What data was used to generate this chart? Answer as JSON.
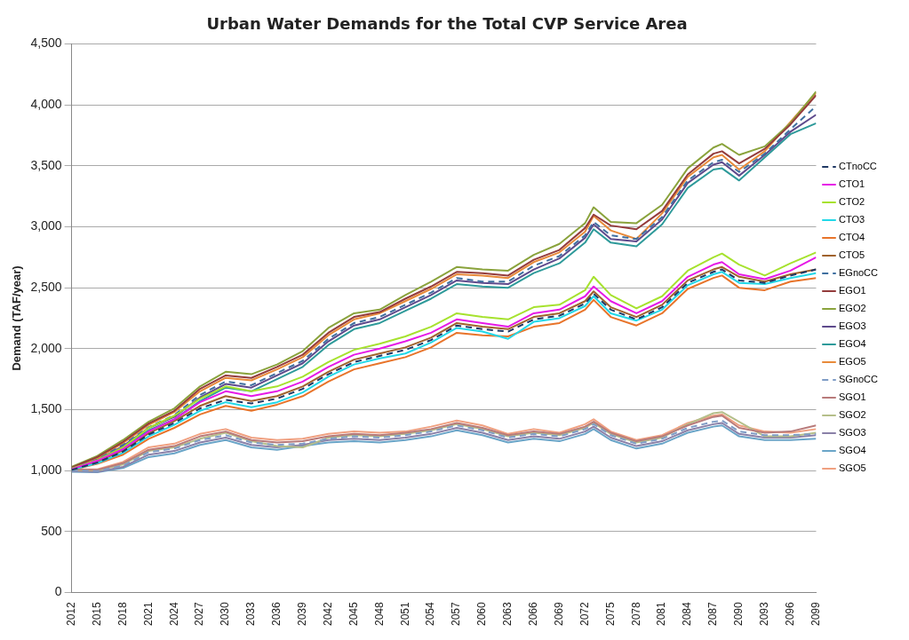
{
  "chart_data": {
    "type": "line",
    "title": "Urban Water Demands for the Total CVP Service Area",
    "ylabel": "Demand (TAF/year)",
    "x": [
      2012,
      2015,
      2018,
      2021,
      2024,
      2027,
      2030,
      2033,
      2036,
      2039,
      2042,
      2045,
      2048,
      2051,
      2054,
      2057,
      2060,
      2063,
      2066,
      2069,
      2072,
      2073,
      2075,
      2078,
      2081,
      2084,
      2087,
      2088,
      2090,
      2093,
      2096,
      2099
    ],
    "xlim": [
      2012,
      2099
    ],
    "xticks": [
      2012,
      2015,
      2018,
      2021,
      2024,
      2027,
      2030,
      2033,
      2036,
      2039,
      2042,
      2045,
      2048,
      2051,
      2054,
      2057,
      2060,
      2063,
      2066,
      2069,
      2072,
      2075,
      2078,
      2081,
      2084,
      2087,
      2090,
      2093,
      2096,
      2099
    ],
    "ylim": [
      0,
      4500
    ],
    "yticks": [
      0,
      500,
      {
        "value": 1000,
        "label": "1,000"
      },
      {
        "value": 1500,
        "label": "1,500"
      },
      {
        "value": 2000,
        "label": "2,000"
      },
      {
        "value": 2500,
        "label": "2,500"
      },
      {
        "value": 3000,
        "label": "3,000"
      },
      {
        "value": 3500,
        "label": "3,500"
      },
      {
        "value": 4000,
        "label": "4,000"
      },
      {
        "value": 4500,
        "label": "4,500"
      }
    ],
    "grid": "y",
    "legend": "right",
    "marker": "none",
    "series": [
      {
        "name": "CTnoCC",
        "color": "#1f3864",
        "line_style": "dashed",
        "values": [
          1005,
          1065,
          1155,
          1295,
          1390,
          1510,
          1580,
          1550,
          1590,
          1670,
          1790,
          1890,
          1940,
          1990,
          2070,
          2190,
          2160,
          2140,
          2240,
          2270,
          2370,
          2450,
          2320,
          2240,
          2340,
          2540,
          2630,
          2650,
          2560,
          2540,
          2600,
          2650
        ]
      },
      {
        "name": "CTO1",
        "color": "#e619e6",
        "values": [
          1010,
          1080,
          1175,
          1320,
          1420,
          1560,
          1650,
          1610,
          1650,
          1730,
          1850,
          1950,
          2000,
          2060,
          2130,
          2240,
          2210,
          2180,
          2290,
          2320,
          2430,
          2510,
          2390,
          2290,
          2390,
          2590,
          2690,
          2710,
          2610,
          2570,
          2640,
          2750
        ]
      },
      {
        "name": "CTO2",
        "color": "#a6e22e",
        "values": [
          1015,
          1085,
          1190,
          1350,
          1450,
          1590,
          1690,
          1650,
          1690,
          1770,
          1890,
          1990,
          2040,
          2100,
          2180,
          2290,
          2260,
          2240,
          2340,
          2360,
          2480,
          2590,
          2440,
          2330,
          2430,
          2640,
          2750,
          2780,
          2690,
          2600,
          2700,
          2790
        ]
      },
      {
        "name": "CTO3",
        "color": "#22d8e8",
        "values": [
          1005,
          1060,
          1145,
          1280,
          1375,
          1490,
          1560,
          1520,
          1560,
          1640,
          1770,
          1870,
          1920,
          1960,
          2050,
          2170,
          2140,
          2080,
          2220,
          2250,
          2350,
          2430,
          2290,
          2230,
          2320,
          2520,
          2610,
          2630,
          2540,
          2530,
          2580,
          2620
        ]
      },
      {
        "name": "CTO4",
        "color": "#e8742a",
        "values": [
          1005,
          1055,
          1130,
          1260,
          1350,
          1460,
          1530,
          1490,
          1540,
          1610,
          1730,
          1830,
          1880,
          1930,
          2010,
          2130,
          2110,
          2100,
          2180,
          2210,
          2320,
          2400,
          2260,
          2190,
          2290,
          2490,
          2580,
          2600,
          2500,
          2480,
          2550,
          2580
        ]
      },
      {
        "name": "CTO5",
        "color": "#a0622d",
        "values": [
          1010,
          1070,
          1165,
          1305,
          1405,
          1530,
          1610,
          1570,
          1610,
          1690,
          1810,
          1910,
          1960,
          2010,
          2090,
          2210,
          2180,
          2160,
          2260,
          2290,
          2390,
          2470,
          2340,
          2260,
          2360,
          2560,
          2650,
          2670,
          2590,
          2550,
          2610,
          2650
        ]
      },
      {
        "name": "EGnoCC",
        "color": "#3f6fa0",
        "line_style": "dashed",
        "values": [
          1015,
          1090,
          1210,
          1355,
          1455,
          1620,
          1730,
          1700,
          1800,
          1900,
          2080,
          2210,
          2260,
          2360,
          2460,
          2580,
          2550,
          2550,
          2680,
          2760,
          2930,
          3040,
          2930,
          2900,
          3080,
          3380,
          3530,
          3550,
          3450,
          3600,
          3800,
          3990
        ]
      },
      {
        "name": "EGO1",
        "color": "#943c3c",
        "values": [
          1025,
          1110,
          1235,
          1385,
          1490,
          1670,
          1780,
          1760,
          1850,
          1950,
          2130,
          2260,
          2300,
          2410,
          2510,
          2630,
          2620,
          2600,
          2730,
          2810,
          2990,
          3100,
          3010,
          2980,
          3130,
          3430,
          3600,
          3620,
          3520,
          3640,
          3840,
          4080
        ]
      },
      {
        "name": "EGO2",
        "color": "#8aa33c",
        "values": [
          1030,
          1120,
          1250,
          1400,
          1510,
          1690,
          1810,
          1790,
          1870,
          1980,
          2170,
          2290,
          2320,
          2440,
          2550,
          2670,
          2650,
          2640,
          2770,
          2860,
          3030,
          3160,
          3040,
          3030,
          3180,
          3480,
          3650,
          3680,
          3590,
          3660,
          3850,
          4110
        ]
      },
      {
        "name": "EGO3",
        "color": "#5e4a8c",
        "values": [
          1015,
          1085,
          1200,
          1350,
          1440,
          1600,
          1710,
          1680,
          1780,
          1880,
          2060,
          2190,
          2240,
          2340,
          2440,
          2560,
          2540,
          2530,
          2650,
          2740,
          2910,
          3020,
          2900,
          2880,
          3060,
          3360,
          3510,
          3530,
          3420,
          3590,
          3780,
          3920
        ]
      },
      {
        "name": "EGO4",
        "color": "#2e9a9a",
        "values": [
          1010,
          1080,
          1190,
          1330,
          1420,
          1570,
          1680,
          1650,
          1750,
          1850,
          2030,
          2160,
          2210,
          2310,
          2410,
          2530,
          2510,
          2500,
          2620,
          2700,
          2870,
          2980,
          2870,
          2840,
          3020,
          3320,
          3470,
          3480,
          3380,
          3570,
          3760,
          3850
        ]
      },
      {
        "name": "EGO5",
        "color": "#e88a3a",
        "values": [
          1020,
          1100,
          1225,
          1375,
          1480,
          1650,
          1760,
          1740,
          1830,
          1930,
          2110,
          2240,
          2290,
          2390,
          2490,
          2610,
          2600,
          2580,
          2710,
          2790,
          2960,
          3090,
          2970,
          2900,
          3110,
          3410,
          3570,
          3590,
          3470,
          3620,
          3860,
          4100
        ]
      },
      {
        "name": "SGnoCC",
        "color": "#7f9cc6",
        "line_style": "dashed",
        "values": [
          1000,
          995,
          1040,
          1150,
          1180,
          1250,
          1290,
          1230,
          1210,
          1220,
          1260,
          1280,
          1270,
          1290,
          1320,
          1370,
          1330,
          1270,
          1300,
          1280,
          1340,
          1380,
          1290,
          1220,
          1260,
          1350,
          1400,
          1410,
          1320,
          1290,
          1290,
          1300
        ]
      },
      {
        "name": "SGO1",
        "color": "#b87a7a",
        "values": [
          1005,
          1005,
          1060,
          1170,
          1200,
          1280,
          1320,
          1250,
          1230,
          1240,
          1280,
          1300,
          1290,
          1310,
          1340,
          1390,
          1350,
          1290,
          1320,
          1300,
          1360,
          1400,
          1310,
          1240,
          1280,
          1370,
          1440,
          1450,
          1350,
          1310,
          1320,
          1370
        ]
      },
      {
        "name": "SGO2",
        "color": "#b5bf8a",
        "values": [
          1000,
          1000,
          1050,
          1160,
          1190,
          1260,
          1310,
          1240,
          1200,
          1190,
          1270,
          1290,
          1280,
          1300,
          1330,
          1380,
          1340,
          1280,
          1310,
          1290,
          1350,
          1390,
          1300,
          1230,
          1270,
          1380,
          1470,
          1480,
          1400,
          1280,
          1280,
          1310
        ]
      },
      {
        "name": "SGO3",
        "color": "#8a80a8",
        "values": [
          995,
          990,
          1030,
          1130,
          1160,
          1230,
          1270,
          1210,
          1190,
          1210,
          1250,
          1260,
          1250,
          1270,
          1300,
          1350,
          1310,
          1250,
          1280,
          1260,
          1320,
          1360,
          1270,
          1200,
          1240,
          1330,
          1380,
          1390,
          1300,
          1270,
          1270,
          1290
        ]
      },
      {
        "name": "SGO4",
        "color": "#6aa5c8",
        "values": [
          990,
          985,
          1020,
          1110,
          1140,
          1210,
          1250,
          1190,
          1170,
          1200,
          1230,
          1240,
          1230,
          1250,
          1280,
          1330,
          1290,
          1230,
          1260,
          1240,
          1300,
          1340,
          1250,
          1180,
          1220,
          1310,
          1360,
          1370,
          1280,
          1250,
          1250,
          1260
        ]
      },
      {
        "name": "SGO5",
        "color": "#f0a080",
        "values": [
          1010,
          1010,
          1070,
          1190,
          1220,
          1300,
          1340,
          1270,
          1250,
          1260,
          1300,
          1320,
          1310,
          1320,
          1360,
          1410,
          1370,
          1300,
          1340,
          1310,
          1380,
          1420,
          1320,
          1250,
          1290,
          1390,
          1450,
          1460,
          1370,
          1320,
          1310,
          1340
        ]
      }
    ]
  }
}
